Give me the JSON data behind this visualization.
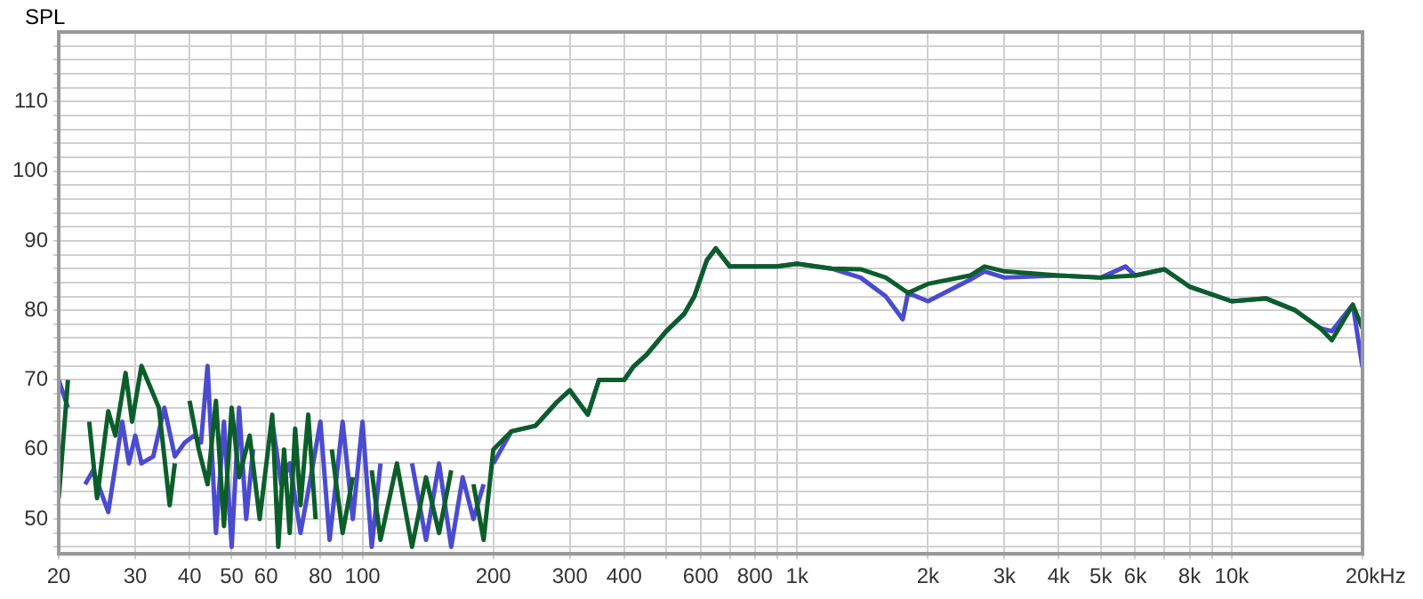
{
  "chart_data": {
    "type": "line",
    "ylabel": "SPL",
    "xlim": [
      20,
      20000
    ],
    "ylim": [
      45,
      120
    ],
    "xticks": [
      20,
      30,
      40,
      50,
      60,
      {
        "value": 70,
        "label": null
      },
      80,
      {
        "value": 90,
        "label": null
      },
      100,
      200,
      300,
      400,
      {
        "value": 500,
        "label": null
      },
      600,
      {
        "value": 700,
        "label": null
      },
      800,
      {
        "value": 900,
        "label": null
      },
      {
        "value": 1000,
        "label": "1k"
      },
      {
        "value": 2000,
        "label": "2k"
      },
      {
        "value": 3000,
        "label": "3k"
      },
      {
        "value": 4000,
        "label": "4k"
      },
      {
        "value": 5000,
        "label": "5k"
      },
      {
        "value": 6000,
        "label": "6k"
      },
      {
        "value": 7000,
        "label": null
      },
      {
        "value": 8000,
        "label": "8k"
      },
      {
        "value": 9000,
        "label": null
      },
      {
        "value": 10000,
        "label": "10k"
      },
      {
        "value": 20000,
        "label": "20k"
      }
    ],
    "xlabel": "Hz",
    "yticks": [
      {
        "value": 46,
        "label": null
      },
      {
        "value": 48,
        "label": null
      },
      50,
      {
        "value": 52,
        "label": null
      },
      {
        "value": 54,
        "label": null
      },
      {
        "value": 56,
        "label": null
      },
      {
        "value": 58,
        "label": null
      },
      60,
      {
        "value": 62,
        "label": null
      },
      {
        "value": 64,
        "label": null
      },
      {
        "value": 66,
        "label": null
      },
      {
        "value": 68,
        "label": null
      },
      70,
      {
        "value": 72,
        "label": null
      },
      {
        "value": 74,
        "label": null
      },
      {
        "value": 76,
        "label": null
      },
      {
        "value": 78,
        "label": null
      },
      80,
      {
        "value": 82,
        "label": null
      },
      {
        "value": 84,
        "label": null
      },
      {
        "value": 86,
        "label": null
      },
      {
        "value": 88,
        "label": null
      },
      90,
      {
        "value": 92,
        "label": null
      },
      {
        "value": 94,
        "label": null
      },
      {
        "value": 96,
        "label": null
      },
      {
        "value": 98,
        "label": null
      },
      100,
      {
        "value": 102,
        "label": null
      },
      {
        "value": 104,
        "label": null
      },
      {
        "value": 106,
        "label": null
      },
      {
        "value": 108,
        "label": null
      },
      110,
      {
        "value": 112,
        "label": null
      },
      {
        "value": 114,
        "label": null
      },
      {
        "value": 116,
        "label": null
      },
      {
        "value": 118,
        "label": null
      }
    ],
    "log": "x",
    "grid": true,
    "legend": false,
    "marker": "none",
    "line_style": "solid",
    "series": [
      {
        "color": "#0b5e2a",
        "x": [
          20,
          21,
          22.5,
          23.5,
          24.5,
          26,
          27,
          28.5,
          29.5,
          31,
          34,
          36,
          37,
          38,
          40,
          42,
          44,
          46,
          48,
          50,
          52,
          55,
          58,
          62,
          64,
          66,
          68,
          70,
          72,
          75,
          78,
          82,
          85,
          90,
          95,
          100,
          105,
          110,
          120,
          130,
          140,
          150,
          160,
          170,
          180,
          190,
          200,
          220,
          250,
          280,
          300,
          330,
          350,
          400,
          420,
          450,
          500,
          550,
          580,
          620,
          650,
          700,
          800,
          900,
          1000,
          1200,
          1400,
          1600,
          1800,
          2000,
          2500,
          2700,
          3000,
          4000,
          5000,
          6000,
          7000,
          8000,
          10000,
          12000,
          14000,
          16000,
          17000,
          19000,
          20000
        ],
        "values": [
          53,
          70,
          null,
          64,
          53,
          65.5,
          62,
          71,
          64,
          72,
          66,
          52,
          58,
          null,
          67,
          60,
          55,
          67,
          49,
          66,
          56,
          62,
          50,
          65,
          46,
          60,
          48,
          63,
          52,
          65,
          50,
          null,
          60,
          48,
          56,
          null,
          57,
          47,
          58,
          46,
          56,
          48,
          57,
          null,
          55,
          47,
          60,
          62.6,
          63.4,
          66.8,
          68.5,
          65,
          70,
          70,
          71.9,
          73.6,
          77,
          79.5,
          82,
          87.2,
          88.9,
          86.3,
          86.3,
          86.3,
          86.7,
          86,
          85.9,
          84.7,
          82.5,
          83.8,
          85,
          86.3,
          85.6,
          85,
          84.7,
          85,
          85.9,
          83.4,
          81.3,
          81.7,
          80,
          77.4,
          75.7,
          80.8,
          77.4
        ]
      },
      {
        "color": "#4b4bd0",
        "x": [
          20,
          21,
          22,
          23,
          24,
          26,
          28,
          29,
          30,
          31,
          33,
          35,
          37,
          39,
          41,
          42.5,
          44,
          46,
          48,
          50,
          52,
          54,
          56,
          58,
          62,
          65,
          68,
          72,
          76,
          80,
          84,
          90,
          95,
          100,
          105,
          110,
          120,
          130,
          140,
          150,
          160,
          170,
          180,
          190,
          195,
          200,
          220,
          250,
          280,
          300,
          330,
          350,
          400,
          420,
          450,
          500,
          550,
          580,
          620,
          650,
          700,
          800,
          900,
          1000,
          1200,
          1400,
          1600,
          1750,
          1800,
          2000,
          2500,
          2700,
          3000,
          4000,
          5000,
          5700,
          6000,
          7000,
          8000,
          10000,
          12000,
          14000,
          16000,
          17000,
          19000,
          20000
        ],
        "values": [
          70,
          66,
          null,
          55,
          57,
          51,
          64,
          58,
          62,
          58,
          59,
          66,
          59,
          61,
          62,
          61,
          72,
          48,
          64,
          46,
          66,
          50,
          60,
          null,
          64,
          55,
          58,
          48,
          56,
          64,
          47,
          64,
          50,
          64,
          46,
          58,
          null,
          58,
          47,
          58,
          46,
          56,
          50,
          55,
          null,
          58,
          62.6,
          63.4,
          66.8,
          68.5,
          65,
          70,
          70,
          71.9,
          73.6,
          77,
          79.5,
          82,
          87.2,
          88.9,
          86.3,
          86.3,
          86.3,
          86.7,
          86,
          84.7,
          82,
          78.7,
          82.5,
          81.3,
          84.4,
          85.6,
          84.7,
          85,
          84.7,
          86.3,
          85,
          85.9,
          83.4,
          81.3,
          81.7,
          80,
          77.4,
          77,
          80.8,
          71.8
        ]
      }
    ]
  }
}
